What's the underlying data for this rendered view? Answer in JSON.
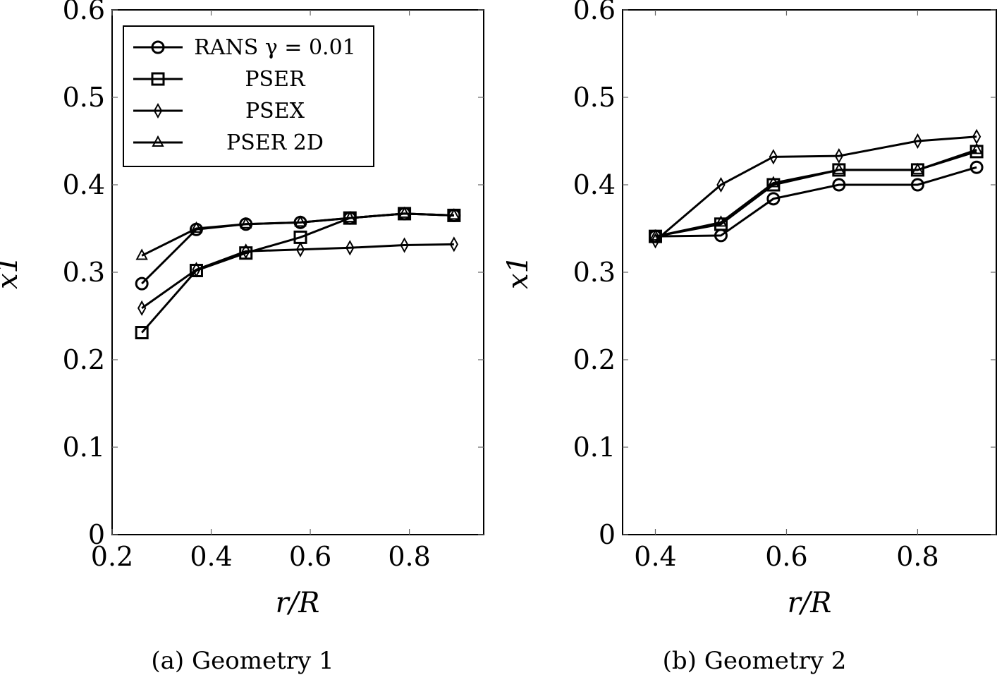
{
  "chart_data": [
    {
      "type": "line",
      "caption": "(a) Geometry 1",
      "xlabel": "r/R",
      "ylabel": "x1",
      "xlim": [
        0.2,
        0.95
      ],
      "ylim": [
        0,
        0.6
      ],
      "xticks": [
        "0.2",
        "0.4",
        "0.6",
        "0.8"
      ],
      "yticks": [
        "0",
        "0.1",
        "0.2",
        "0.3",
        "0.4",
        "0.5",
        "0.6"
      ],
      "legend": {
        "location": "top-left",
        "entries": [
          "RANS γ = 0.01",
          "PSER",
          "PSEX",
          "PSER 2D"
        ]
      },
      "series": [
        {
          "name": "RANS γ = 0.01",
          "marker": "circle",
          "x": [
            0.26,
            0.37,
            0.47,
            0.58,
            0.68,
            0.79,
            0.89
          ],
          "y": [
            0.287,
            0.349,
            0.355,
            0.357,
            0.362,
            0.367,
            0.365
          ]
        },
        {
          "name": "PSER",
          "marker": "square",
          "x": [
            0.26,
            0.37,
            0.47,
            0.58,
            0.68,
            0.79,
            0.89
          ],
          "y": [
            0.231,
            0.302,
            0.322,
            0.34,
            0.362,
            0.367,
            0.365
          ]
        },
        {
          "name": "PSEX",
          "marker": "diamond",
          "x": [
            0.26,
            0.37,
            0.47,
            0.58,
            0.68,
            0.79,
            0.89
          ],
          "y": [
            0.259,
            0.303,
            0.324,
            0.326,
            0.328,
            0.331,
            0.332
          ]
        },
        {
          "name": "PSER 2D",
          "marker": "triangle",
          "x": [
            0.26,
            0.37,
            0.47,
            0.58,
            0.68,
            0.79,
            0.89
          ],
          "y": [
            0.319,
            0.35,
            0.355,
            0.357,
            0.362,
            0.367,
            0.365
          ]
        }
      ]
    },
    {
      "type": "line",
      "caption": "(b) Geometry 2",
      "xlabel": "r/R",
      "ylabel": "x1",
      "xlim": [
        0.35,
        0.92
      ],
      "ylim": [
        0,
        0.6
      ],
      "xticks": [
        "0.4",
        "0.6",
        "0.8"
      ],
      "yticks": [
        "0",
        "0.1",
        "0.2",
        "0.3",
        "0.4",
        "0.5",
        "0.6"
      ],
      "series": [
        {
          "name": "RANS γ = 0.01",
          "marker": "circle",
          "x": [
            0.4,
            0.5,
            0.58,
            0.68,
            0.8,
            0.89
          ],
          "y": [
            0.341,
            0.342,
            0.384,
            0.4,
            0.4,
            0.42
          ]
        },
        {
          "name": "PSER",
          "marker": "square",
          "x": [
            0.4,
            0.5,
            0.58,
            0.68,
            0.8,
            0.89
          ],
          "y": [
            0.341,
            0.355,
            0.4,
            0.417,
            0.417,
            0.438
          ]
        },
        {
          "name": "PSEX",
          "marker": "diamond",
          "x": [
            0.4,
            0.5,
            0.58,
            0.68,
            0.8,
            0.89
          ],
          "y": [
            0.336,
            0.4,
            0.432,
            0.433,
            0.45,
            0.455
          ]
        },
        {
          "name": "PSER 2D",
          "marker": "triangle",
          "x": [
            0.4,
            0.5,
            0.58,
            0.68,
            0.8,
            0.89
          ],
          "y": [
            0.341,
            0.357,
            0.402,
            0.417,
            0.417,
            0.44
          ]
        }
      ]
    }
  ]
}
